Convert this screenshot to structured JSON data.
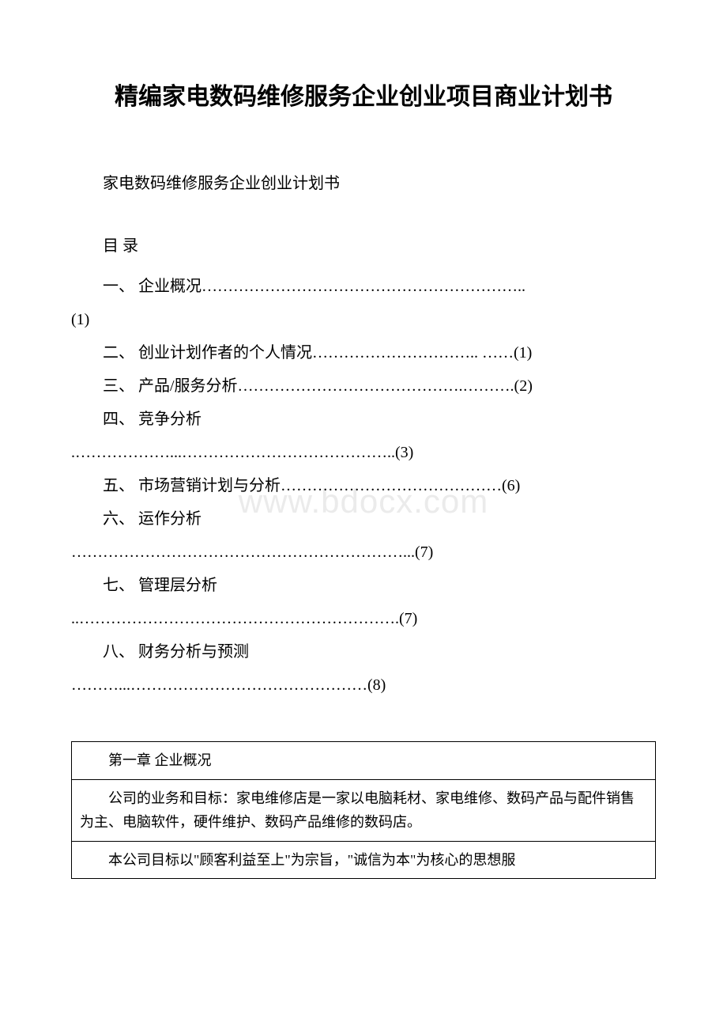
{
  "title": "精编家电数码维修服务企业创业项目商业计划书",
  "subtitle": "家电数码维修服务企业创业计划书",
  "toc": {
    "header": "目 录",
    "items": [
      {
        "line1": "一、 企业概况……………………………………………………..",
        "line2": "(1)"
      },
      {
        "line1": "二、 创业计划作者的个人情况………………………….. ……(1)"
      },
      {
        "line1": "三、 产品/服务分析…………………………………….……….(2)"
      },
      {
        "line1": "四、 竞争分析",
        "line2": ".………………...…………………………………..(3)"
      },
      {
        "line1": "五、 市场营销计划与分析……………………………………(6)"
      },
      {
        "line1": "六、 运作分析",
        "line2": "………………………………………………………...(7)"
      },
      {
        "line1": "七、 管理层分析",
        "line2": "..…………………………………………………….(7)"
      },
      {
        "line1": "八、 财务分析与预测",
        "line2": "………...………………………………………(8)"
      }
    ]
  },
  "table": {
    "rows": [
      "第一章 企业概况",
      "公司的业务和目标：家电维修店是一家以电脑耗材、家电维修、数码产品与配件销售为主、电脑软件，硬件维护、数码产品维修的数码店。",
      "本公司目标以\"顾客利益至上\"为宗旨，\"诚信为本\"为核心的思想服"
    ]
  },
  "watermark": "www.bdocx.com",
  "colors": {
    "background": "#ffffff",
    "text": "#000000",
    "border": "#000000",
    "watermark": "#ebebeb"
  }
}
